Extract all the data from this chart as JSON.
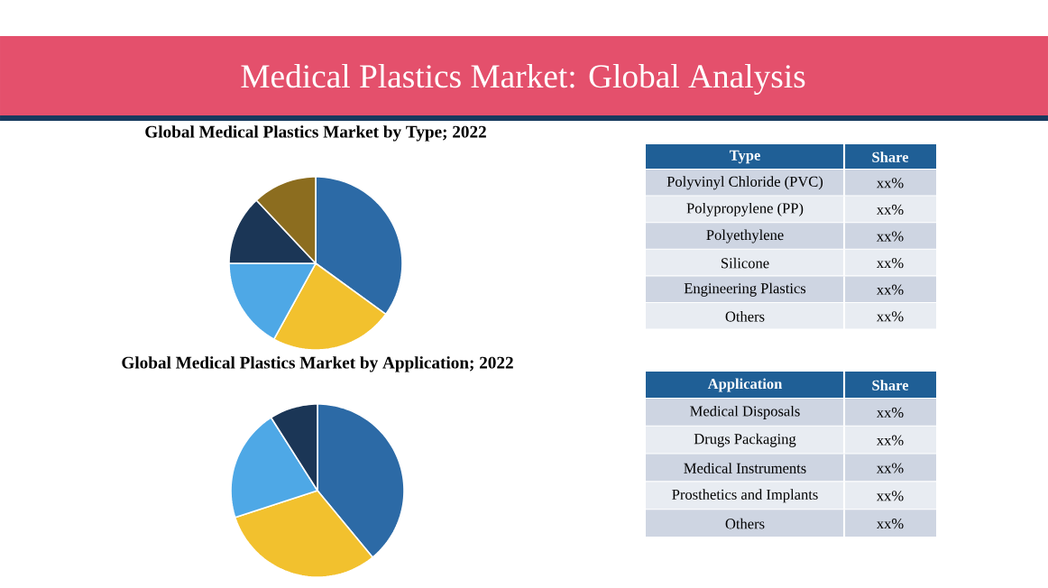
{
  "chart_data": [
    {
      "type": "other",
      "title": "Medical Plastics Market: Global Analysis"
    },
    {
      "type": "pie",
      "title": "Global Medical Plastics Market by Type; 2022",
      "categories": [
        null,
        null,
        null,
        null,
        null
      ],
      "values": [
        35,
        23,
        17,
        13,
        12
      ],
      "colors": [
        "#2c6aa6",
        "#f2c12e",
        "#4ea8e6",
        "#1b3656",
        "#8c6d1f"
      ]
    },
    {
      "type": "other",
      "annotations": [
        "Type",
        "Share",
        "Polyvinyl Chloride (PVC)",
        "xx%",
        "Polypropylene (PP)",
        "xx%",
        "Polyethylene",
        "xx%",
        "Silicone",
        "xx%",
        "Engineering Plastics",
        "xx%",
        "Others",
        "xx%"
      ]
    },
    {
      "type": "pie",
      "title": "Global Medical Plastics Market by Application; 2022",
      "categories": [
        null,
        null,
        null,
        null
      ],
      "values": [
        39,
        31,
        21,
        9
      ],
      "colors": [
        "#2c6aa6",
        "#f2c12e",
        "#4ea8e6",
        "#1b3656"
      ]
    },
    {
      "type": "other",
      "annotations": [
        "Application",
        "Share",
        "Medical Disposals",
        "xx%",
        "Drugs Packaging",
        "xx%",
        "Medical Instruments",
        "xx%",
        "Prosthetics and Implants",
        "xx%",
        "Others",
        "xx%"
      ]
    }
  ]
}
